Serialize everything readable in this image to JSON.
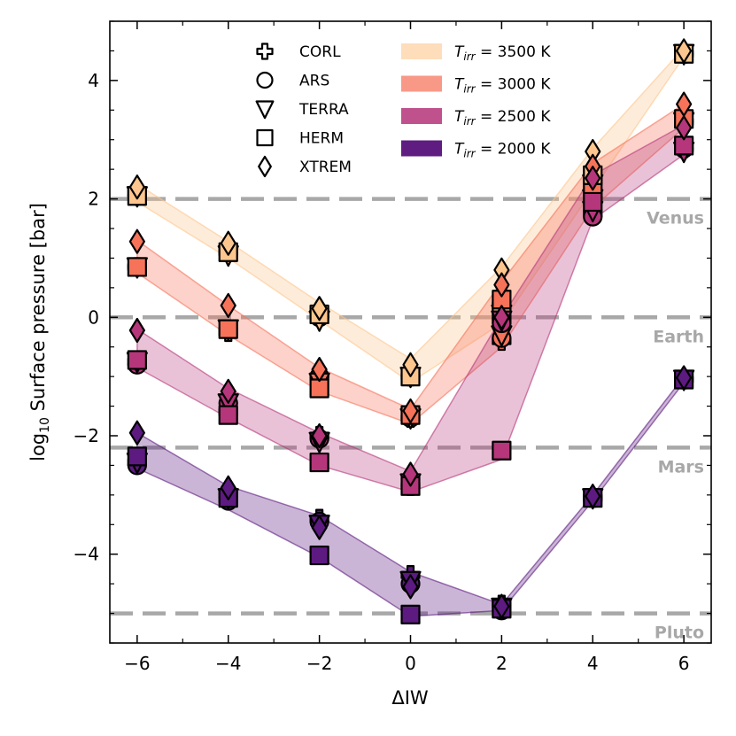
{
  "chart_data": {
    "type": "line",
    "xlabel": "ΔIW",
    "ylabel_prefix": "log",
    "ylabel_sub": "10",
    "ylabel_suffix": " Surface pressure [bar]",
    "xlim": [
      -6.6,
      6.6
    ],
    "ylim": [
      -5.5,
      5.0
    ],
    "x_ticks": [
      -6,
      -4,
      -2,
      0,
      2,
      4,
      6
    ],
    "x_tick_labels": [
      "−6",
      "−4",
      "−2",
      "0",
      "2",
      "4",
      "6"
    ],
    "y_ticks": [
      -4,
      -2,
      0,
      2,
      4
    ],
    "y_tick_labels": [
      "−4",
      "−2",
      "0",
      "2",
      "4"
    ],
    "x_minor_step": 1,
    "y_minor_step": 0.5,
    "reference_lines": [
      {
        "name": "Venus",
        "y": 2.0
      },
      {
        "name": "Earth",
        "y": 0.0
      },
      {
        "name": "Mars",
        "y": -2.2
      },
      {
        "name": "Pluto",
        "y": -5.0
      }
    ],
    "marker_legend": [
      {
        "model": "CORL",
        "marker": "plus"
      },
      {
        "model": "ARS",
        "marker": "circle"
      },
      {
        "model": "TERRA",
        "marker": "triangle-down"
      },
      {
        "model": "HERM",
        "marker": "square"
      },
      {
        "model": "XTREM",
        "marker": "diamond"
      }
    ],
    "color_legend": [
      {
        "label_prefix": "T",
        "label_sub": "irr",
        "label_suffix": " = 3500 K",
        "color": "#fdc68e"
      },
      {
        "label_prefix": "T",
        "label_sub": "irr",
        "label_suffix": " = 3000 K",
        "color": "#f6735a"
      },
      {
        "label_prefix": "T",
        "label_sub": "irr",
        "label_suffix": " = 2500 K",
        "color": "#b5367a"
      },
      {
        "label_prefix": "T",
        "label_sub": "irr",
        "label_suffix": " = 2000 K",
        "color": "#5d1a80"
      }
    ],
    "series": [
      {
        "name": "T_irr = 3500 K",
        "color": "#fdc68e",
        "x": [
          -6,
          -4,
          -2,
          0,
          2,
          4,
          6
        ],
        "band_lower": [
          1.95,
          1.0,
          -0.05,
          -1.1,
          -0.1,
          2.15,
          4.4
        ],
        "band_upper": [
          2.25,
          1.28,
          0.25,
          -0.7,
          0.85,
          2.85,
          4.55
        ],
        "models": {
          "CORL": [
            2.1,
            1.1,
            0.05,
            -1.0,
            0.15,
            2.3,
            4.45
          ],
          "ARS": [
            2.05,
            1.1,
            0.0,
            -1.0,
            0.05,
            2.3,
            4.45
          ],
          "TERRA": [
            2.05,
            1.05,
            -0.05,
            -1.0,
            0.05,
            2.25,
            4.45
          ],
          "HERM": [
            2.05,
            1.1,
            0.05,
            -1.0,
            0.1,
            2.4,
            4.45
          ],
          "XTREM": [
            2.2,
            1.25,
            0.15,
            -0.8,
            0.8,
            2.8,
            4.5
          ]
        }
      },
      {
        "name": "T_irr = 3000 K",
        "color": "#f6735a",
        "x": [
          -6,
          -4,
          -2,
          0,
          2,
          4,
          6
        ],
        "band_lower": [
          0.75,
          -0.3,
          -1.25,
          -1.8,
          -0.5,
          1.85,
          3.2
        ],
        "band_upper": [
          1.3,
          0.2,
          -0.85,
          -1.55,
          0.6,
          2.6,
          3.6
        ],
        "models": {
          "CORL": [
            0.85,
            -0.25,
            -1.0,
            -1.7,
            -0.4,
            2.0,
            3.3
          ],
          "ARS": [
            0.85,
            -0.2,
            -1.0,
            -1.7,
            -0.35,
            2.0,
            3.3
          ],
          "TERRA": [
            0.85,
            -0.2,
            -1.1,
            -1.7,
            -0.3,
            2.0,
            3.3
          ],
          "HERM": [
            0.85,
            -0.2,
            -1.2,
            -1.65,
            0.3,
            2.1,
            3.35
          ],
          "XTREM": [
            1.28,
            0.2,
            -0.88,
            -1.58,
            0.55,
            2.55,
            3.6
          ]
        }
      },
      {
        "name": "T_irr = 2500 K",
        "color": "#b5367a",
        "x": [
          -6,
          -4,
          -2,
          0,
          2,
          4,
          6
        ],
        "band_lower": [
          -0.85,
          -1.7,
          -2.5,
          -2.95,
          -2.4,
          1.65,
          2.75
        ],
        "band_upper": [
          -0.2,
          -1.2,
          -1.95,
          -2.6,
          0.0,
          2.4,
          3.25
        ],
        "models": {
          "CORL": [
            -0.75,
            -1.6,
            -2.0,
            -2.85,
            -0.05,
            1.75,
            2.85
          ],
          "ARS": [
            -0.8,
            -1.45,
            -2.05,
            -2.85,
            -0.1,
            1.7,
            2.85
          ],
          "TERRA": [
            -0.75,
            -1.45,
            -2.1,
            -2.8,
            -0.05,
            1.8,
            2.8
          ],
          "HERM": [
            -0.72,
            -1.65,
            -2.45,
            -2.85,
            -2.25,
            1.95,
            2.9
          ],
          "XTREM": [
            -0.22,
            -1.25,
            -2.0,
            -2.65,
            0.0,
            2.35,
            3.2
          ]
        }
      },
      {
        "name": "T_irr = 2000 K",
        "color": "#5d1a80",
        "x": [
          -6,
          -4,
          -2,
          0,
          2,
          4,
          6
        ],
        "band_lower": [
          -2.55,
          -3.25,
          -4.05,
          -5.05,
          -4.95,
          -3.1,
          -1.1
        ],
        "band_upper": [
          -1.95,
          -2.85,
          -3.35,
          -4.3,
          -4.85,
          -3.0,
          -1.0
        ],
        "models": {
          "CORL": [
            -2.45,
            -3.0,
            -3.4,
            -4.35,
            -4.85,
            -3.05,
            -1.05
          ],
          "ARS": [
            -2.5,
            -3.1,
            -3.45,
            -4.5,
            -4.95,
            -3.05,
            -1.05
          ],
          "TERRA": [
            -2.45,
            -3.05,
            -3.5,
            -4.45,
            -4.9,
            -3.05,
            -1.05
          ],
          "HERM": [
            -2.35,
            -3.05,
            -4.02,
            -5.02,
            -4.92,
            -3.05,
            -1.05
          ],
          "XTREM": [
            -1.95,
            -2.88,
            -3.55,
            -4.55,
            -4.88,
            -3.02,
            -1.02
          ]
        }
      }
    ]
  }
}
